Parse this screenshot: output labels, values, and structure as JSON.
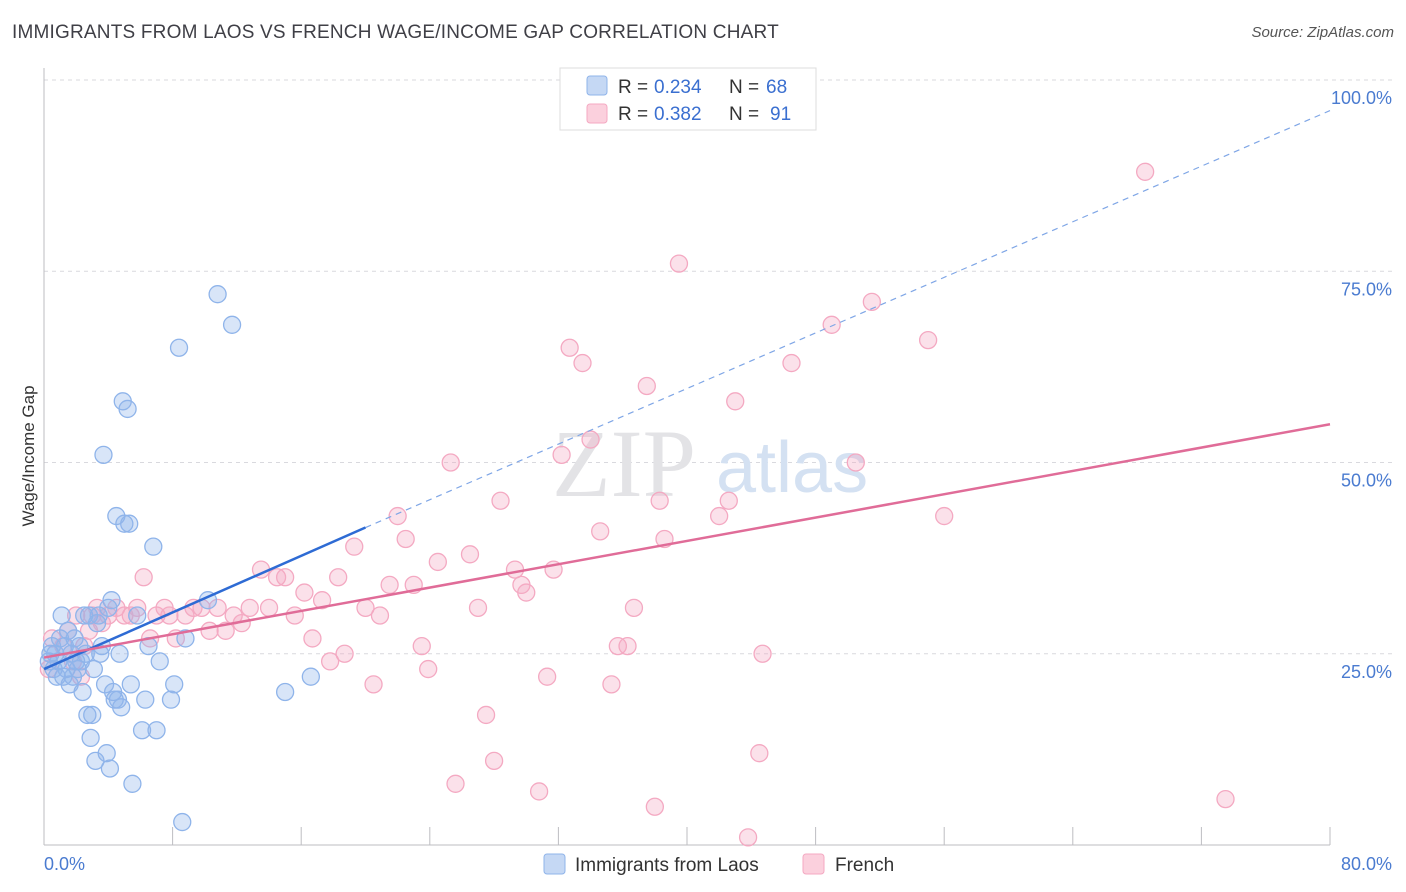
{
  "header": {
    "title": "IMMIGRANTS FROM LAOS VS FRENCH WAGE/INCOME GAP CORRELATION CHART",
    "source": "Source: ZipAtlas.com"
  },
  "watermark": {
    "part1": "ZIP",
    "part2": "atlas"
  },
  "legend": {
    "rows": [
      {
        "r_label": "R =",
        "r_value": "0.234",
        "n_label": "N =",
        "n_value": "68",
        "color": "#8fb4ea"
      },
      {
        "r_label": "R =",
        "r_value": "0.382",
        "n_label": "N =",
        "n_value": "91",
        "color": "#f4a9c2"
      }
    ]
  },
  "bottom_legend": [
    "Immigrants from Laos",
    "French"
  ],
  "chart_data": {
    "type": "scatter",
    "title": "IMMIGRANTS FROM LAOS VS FRENCH WAGE/INCOME GAP CORRELATION CHART",
    "xlabel": "",
    "ylabel": "Wage/Income Gap",
    "xlim": [
      0,
      80
    ],
    "ylim": [
      0,
      100
    ],
    "x_tick_labels": [
      "0.0%",
      "80.0%"
    ],
    "y_ticks": [
      25,
      50,
      75,
      100
    ],
    "y_tick_labels": [
      "25.0%",
      "50.0%",
      "75.0%",
      "100.0%"
    ],
    "grid": true,
    "legend_position": "top-center",
    "series": [
      {
        "name": "Immigrants from Laos",
        "color": "#8fb4ea",
        "line_color": "#2e6bd4",
        "trend": {
          "x": [
            0,
            20
          ],
          "y": [
            23,
            41.5
          ],
          "dashed_to": [
            80,
            96
          ]
        },
        "points": [
          [
            0.3,
            24
          ],
          [
            0.4,
            25
          ],
          [
            0.5,
            26
          ],
          [
            0.6,
            23
          ],
          [
            0.7,
            25
          ],
          [
            0.8,
            22
          ],
          [
            0.9,
            24
          ],
          [
            1.0,
            27
          ],
          [
            1.1,
            30
          ],
          [
            1.2,
            22
          ],
          [
            1.3,
            26
          ],
          [
            1.4,
            23
          ],
          [
            1.5,
            28
          ],
          [
            1.6,
            21
          ],
          [
            1.7,
            25
          ],
          [
            1.8,
            22
          ],
          [
            1.9,
            27
          ],
          [
            2.0,
            24
          ],
          [
            2.1,
            23
          ],
          [
            2.2,
            26
          ],
          [
            2.3,
            24
          ],
          [
            2.4,
            20
          ],
          [
            2.5,
            30
          ],
          [
            2.6,
            25
          ],
          [
            2.7,
            17
          ],
          [
            2.8,
            30
          ],
          [
            2.9,
            14
          ],
          [
            3.0,
            17
          ],
          [
            3.1,
            23
          ],
          [
            3.2,
            11
          ],
          [
            3.3,
            29
          ],
          [
            3.4,
            30
          ],
          [
            3.5,
            25
          ],
          [
            3.6,
            26
          ],
          [
            3.7,
            51
          ],
          [
            3.8,
            21
          ],
          [
            3.9,
            12
          ],
          [
            4.0,
            31
          ],
          [
            4.1,
            10
          ],
          [
            4.2,
            32
          ],
          [
            4.3,
            20
          ],
          [
            4.4,
            19
          ],
          [
            4.5,
            43
          ],
          [
            4.6,
            19
          ],
          [
            4.7,
            25
          ],
          [
            4.8,
            18
          ],
          [
            4.9,
            58
          ],
          [
            5.0,
            42
          ],
          [
            5.2,
            57
          ],
          [
            5.3,
            42
          ],
          [
            5.4,
            21
          ],
          [
            5.5,
            8
          ],
          [
            5.8,
            30
          ],
          [
            6.1,
            15
          ],
          [
            6.3,
            19
          ],
          [
            6.5,
            26
          ],
          [
            6.8,
            39
          ],
          [
            7.0,
            15
          ],
          [
            7.2,
            24
          ],
          [
            7.9,
            19
          ],
          [
            8.1,
            21
          ],
          [
            8.4,
            65
          ],
          [
            8.6,
            3
          ],
          [
            8.8,
            27
          ],
          [
            10.2,
            32
          ],
          [
            10.8,
            72
          ],
          [
            11.7,
            68
          ],
          [
            15.0,
            20
          ],
          [
            16.6,
            22
          ]
        ]
      },
      {
        "name": "French",
        "color": "#f4a9c2",
        "line_color": "#e06c98",
        "trend": {
          "x": [
            0,
            80
          ],
          "y": [
            24.5,
            55
          ]
        },
        "points": [
          [
            0.3,
            23
          ],
          [
            0.5,
            27
          ],
          [
            1.2,
            26
          ],
          [
            1.5,
            28
          ],
          [
            1.8,
            24
          ],
          [
            2.0,
            30
          ],
          [
            2.3,
            22
          ],
          [
            2.5,
            26
          ],
          [
            2.8,
            28
          ],
          [
            3.0,
            30
          ],
          [
            3.3,
            31
          ],
          [
            3.6,
            29
          ],
          [
            4.0,
            30
          ],
          [
            4.5,
            31
          ],
          [
            5.0,
            30
          ],
          [
            5.4,
            30
          ],
          [
            5.8,
            31
          ],
          [
            6.2,
            35
          ],
          [
            6.6,
            27
          ],
          [
            7.0,
            30
          ],
          [
            7.5,
            31
          ],
          [
            7.8,
            30
          ],
          [
            8.2,
            27
          ],
          [
            8.8,
            30
          ],
          [
            9.3,
            31
          ],
          [
            9.8,
            31
          ],
          [
            10.3,
            28
          ],
          [
            10.8,
            31
          ],
          [
            11.3,
            28
          ],
          [
            11.8,
            30
          ],
          [
            12.3,
            29
          ],
          [
            12.8,
            31
          ],
          [
            13.5,
            36
          ],
          [
            14.0,
            31
          ],
          [
            14.5,
            35
          ],
          [
            15.0,
            35
          ],
          [
            15.6,
            30
          ],
          [
            16.2,
            33
          ],
          [
            16.7,
            27
          ],
          [
            17.3,
            32
          ],
          [
            17.8,
            24
          ],
          [
            18.3,
            35
          ],
          [
            18.7,
            25
          ],
          [
            19.3,
            39
          ],
          [
            20.0,
            31
          ],
          [
            20.5,
            21
          ],
          [
            20.9,
            30
          ],
          [
            21.5,
            34
          ],
          [
            22.0,
            43
          ],
          [
            22.5,
            40
          ],
          [
            23.0,
            34
          ],
          [
            23.5,
            26
          ],
          [
            23.9,
            23
          ],
          [
            24.5,
            37
          ],
          [
            25.3,
            50
          ],
          [
            25.6,
            8
          ],
          [
            26.5,
            38
          ],
          [
            27.0,
            31
          ],
          [
            27.5,
            17
          ],
          [
            28.0,
            11
          ],
          [
            28.4,
            45
          ],
          [
            29.3,
            36
          ],
          [
            29.7,
            34
          ],
          [
            30.0,
            33
          ],
          [
            30.8,
            7
          ],
          [
            31.3,
            22
          ],
          [
            31.7,
            36
          ],
          [
            32.2,
            51
          ],
          [
            32.7,
            65
          ],
          [
            33.5,
            63
          ],
          [
            34.0,
            53
          ],
          [
            34.6,
            41
          ],
          [
            35.3,
            21
          ],
          [
            35.7,
            26
          ],
          [
            36.3,
            26
          ],
          [
            36.7,
            31
          ],
          [
            37.5,
            60
          ],
          [
            38.0,
            5
          ],
          [
            38.3,
            45
          ],
          [
            38.6,
            40
          ],
          [
            39.5,
            76
          ],
          [
            42.0,
            43
          ],
          [
            42.6,
            45
          ],
          [
            43.0,
            58
          ],
          [
            43.8,
            1
          ],
          [
            44.5,
            12
          ],
          [
            44.7,
            25
          ],
          [
            46.5,
            63
          ],
          [
            49.0,
            68
          ],
          [
            50.5,
            50
          ],
          [
            51.5,
            71
          ],
          [
            55.0,
            66
          ],
          [
            56.0,
            43
          ],
          [
            68.5,
            88
          ],
          [
            73.5,
            6
          ]
        ]
      }
    ]
  }
}
